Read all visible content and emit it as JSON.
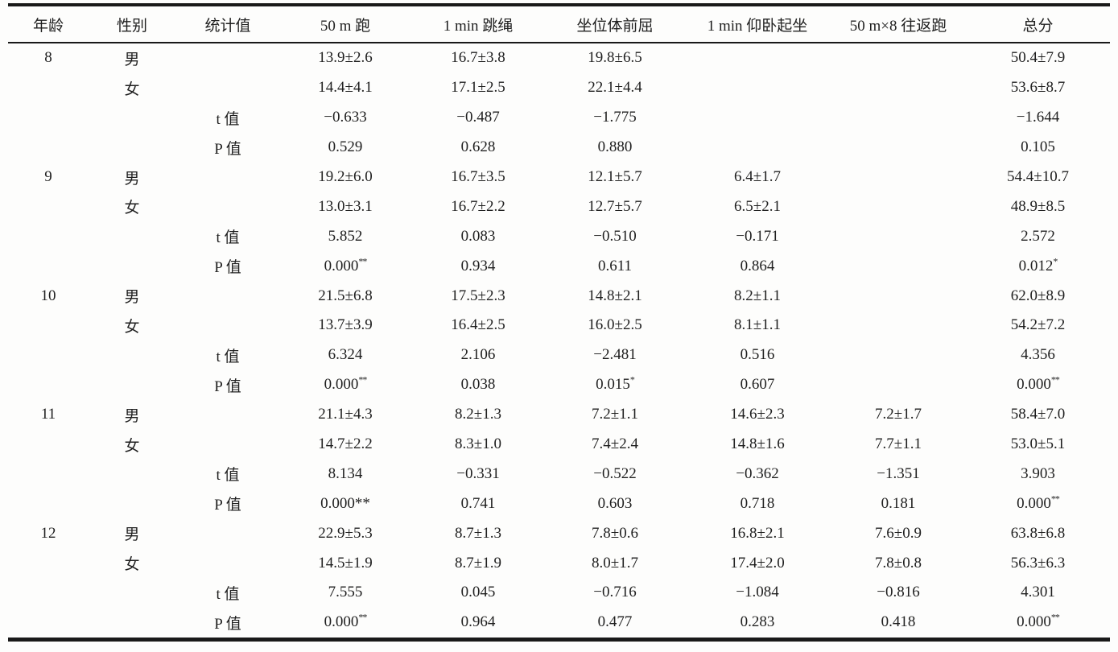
{
  "table": {
    "columns": [
      "年龄",
      "性别",
      "统计值",
      "50 m 跑",
      "1 min 跳绳",
      "坐位体前屈",
      "1 min 仰卧起坐",
      "50 m×8 往返跑",
      "总分"
    ],
    "sup_marker": "^",
    "rows": [
      [
        "8",
        "男",
        "",
        "13.9±2.6",
        "16.7±3.8",
        "19.8±6.5",
        "",
        "",
        "50.4±7.9"
      ],
      [
        "",
        "女",
        "",
        "14.4±4.1",
        "17.1±2.5",
        "22.1±4.4",
        "",
        "",
        "53.6±8.7"
      ],
      [
        "",
        "",
        "t 值",
        "−0.633",
        "−0.487",
        "−1.775",
        "",
        "",
        "−1.644"
      ],
      [
        "",
        "",
        "P 值",
        "0.529",
        "0.628",
        "0.880",
        "",
        "",
        "0.105"
      ],
      [
        "9",
        "男",
        "",
        "19.2±6.0",
        "16.7±3.5",
        "12.1±5.7",
        "6.4±1.7",
        "",
        "54.4±10.7"
      ],
      [
        "",
        "女",
        "",
        "13.0±3.1",
        "16.7±2.2",
        "12.7±5.7",
        "6.5±2.1",
        "",
        "48.9±8.5"
      ],
      [
        "",
        "",
        "t 值",
        "5.852",
        "0.083",
        "−0.510",
        "−0.171",
        "",
        "2.572"
      ],
      [
        "",
        "",
        "P 值",
        "0.000^**",
        "0.934",
        "0.611",
        "0.864",
        "",
        "0.012^*"
      ],
      [
        "10",
        "男",
        "",
        "21.5±6.8",
        "17.5±2.3",
        "14.8±2.1",
        "8.2±1.1",
        "",
        "62.0±8.9"
      ],
      [
        "",
        "女",
        "",
        "13.7±3.9",
        "16.4±2.5",
        "16.0±2.5",
        "8.1±1.1",
        "",
        "54.2±7.2"
      ],
      [
        "",
        "",
        "t 值",
        "6.324",
        "2.106",
        "−2.481",
        "0.516",
        "",
        "4.356"
      ],
      [
        "",
        "",
        "P 值",
        "0.000^**",
        "0.038",
        "0.015^*",
        "0.607",
        "",
        "0.000^**"
      ],
      [
        "11",
        "男",
        "",
        "21.1±4.3",
        "8.2±1.3",
        "7.2±1.1",
        "14.6±2.3",
        "7.2±1.7",
        "58.4±7.0"
      ],
      [
        "",
        "女",
        "",
        "14.7±2.2",
        "8.3±1.0",
        "7.4±2.4",
        "14.8±1.6",
        "7.7±1.1",
        "53.0±5.1"
      ],
      [
        "",
        "",
        "t 值",
        "8.134",
        "−0.331",
        "−0.522",
        "−0.362",
        "−1.351",
        "3.903"
      ],
      [
        "",
        "",
        "P 值",
        "0.000**",
        "0.741",
        "0.603",
        "0.718",
        "0.181",
        "0.000^**"
      ],
      [
        "12",
        "男",
        "",
        "22.9±5.3",
        "8.7±1.3",
        "7.8±0.6",
        "16.8±2.1",
        "7.6±0.9",
        "63.8±6.8"
      ],
      [
        "",
        "女",
        "",
        "14.5±1.9",
        "8.7±1.9",
        "8.0±1.7",
        "17.4±2.0",
        "7.8±0.8",
        "56.3±6.3"
      ],
      [
        "",
        "",
        "t 值",
        "7.555",
        "0.045",
        "−0.716",
        "−1.084",
        "−0.816",
        "4.301"
      ],
      [
        "",
        "",
        "P 值",
        "0.000^**",
        "0.964",
        "0.477",
        "0.283",
        "0.418",
        "0.000^**"
      ]
    ]
  },
  "colors": {
    "text": "#1f1f1f",
    "rule": "#191919",
    "background": "#fdfdfc"
  }
}
